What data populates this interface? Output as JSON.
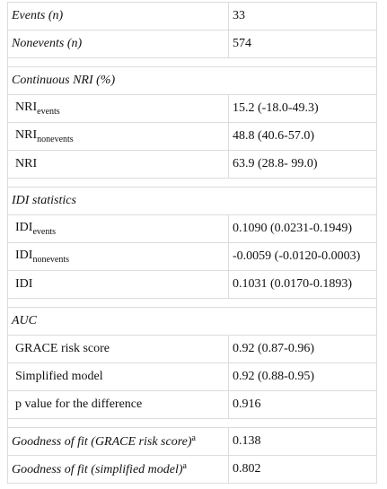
{
  "summary": [
    {
      "label": "Events (n)",
      "value": "33"
    },
    {
      "label": "Nonevents (n)",
      "value": "574"
    }
  ],
  "sections": [
    {
      "title": "Continuous NRI (%)",
      "rows": [
        {
          "label": "NRI",
          "sub": "events",
          "value": "15.2 (-18.0-49.3)"
        },
        {
          "label": "NRI",
          "sub": "nonevents",
          "value": "48.8 (40.6-57.0)"
        },
        {
          "label": "NRI",
          "value": "63.9 (28.8- 99.0)"
        }
      ]
    },
    {
      "title": "IDI statistics",
      "rows": [
        {
          "label": "IDI",
          "sub": "events",
          "value": "0.1090 (0.0231-0.1949)"
        },
        {
          "label": "IDI",
          "sub": "nonevents",
          "value": "-0.0059 (-0.0120-0.0003)"
        },
        {
          "label": "IDI",
          "value": "0.1031 (0.0170-0.1893)"
        }
      ]
    },
    {
      "title": "AUC",
      "rows": [
        {
          "label": "GRACE risk score",
          "value": "0.92 (0.87-0.96)"
        },
        {
          "label": "Simplified model",
          "value": "0.92 (0.88-0.95)"
        },
        {
          "label": "p value for the difference",
          "value": "0.916"
        }
      ]
    }
  ],
  "fit": [
    {
      "label": "Goodness of fit (GRACE risk score)",
      "sup": "a",
      "value": "0.138"
    },
    {
      "label": "Goodness of fit (simplified model)",
      "sup": "a",
      "value": "0.802"
    }
  ]
}
